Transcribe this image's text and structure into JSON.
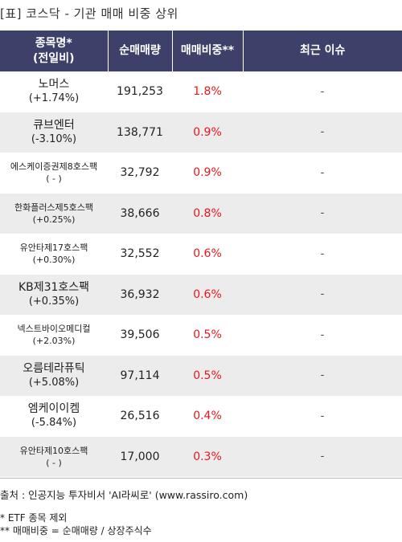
{
  "title": "[표] 코스닥 - 기관 매매 비중 상위",
  "headers": {
    "name_line1": "종목명*",
    "name_line2": "(전일비)",
    "volume": "순매매량",
    "ratio": "매매비중**",
    "issue": "최근 이슈"
  },
  "rows": [
    {
      "name": "노머스",
      "change": "(+1.74%)",
      "volume": "191,253",
      "ratio": "1.8%",
      "issue": "-"
    },
    {
      "name": "큐브엔터",
      "change": "(-3.10%)",
      "volume": "138,771",
      "ratio": "0.9%",
      "issue": "-"
    },
    {
      "name": "에스케이증권제8호스팩",
      "change": "( - )",
      "volume": "32,792",
      "ratio": "0.9%",
      "issue": "-"
    },
    {
      "name": "한화플러스제5호스팩",
      "change": "(+0.25%)",
      "volume": "38,666",
      "ratio": "0.8%",
      "issue": "-"
    },
    {
      "name": "유안타제17호스팩",
      "change": "(+0.30%)",
      "volume": "32,552",
      "ratio": "0.6%",
      "issue": "-"
    },
    {
      "name": "KB제31호스팩",
      "change": "(+0.35%)",
      "volume": "36,932",
      "ratio": "0.6%",
      "issue": "-"
    },
    {
      "name": "넥스트바이오메디컬",
      "change": "(+2.03%)",
      "volume": "39,506",
      "ratio": "0.5%",
      "issue": "-"
    },
    {
      "name": "오름테라퓨틱",
      "change": "(+5.08%)",
      "volume": "97,114",
      "ratio": "0.5%",
      "issue": "-"
    },
    {
      "name": "엠케이이켐",
      "change": "(-5.84%)",
      "volume": "26,516",
      "ratio": "0.4%",
      "issue": "-"
    },
    {
      "name": "유안타제10호스팩",
      "change": "( - )",
      "volume": "17,000",
      "ratio": "0.3%",
      "issue": "-"
    }
  ],
  "footer": {
    "source": "출처 : 인공지능 투자비서 'AI라씨로' (www.rassiro.com)",
    "note1": "* ETF 종목 제외",
    "note2": "** 매매비중 = 순매매량 / 상장주식수"
  },
  "colors": {
    "header_bg": "#3d4069",
    "ratio_text": "#e8161b",
    "stripe": "#ececec"
  }
}
